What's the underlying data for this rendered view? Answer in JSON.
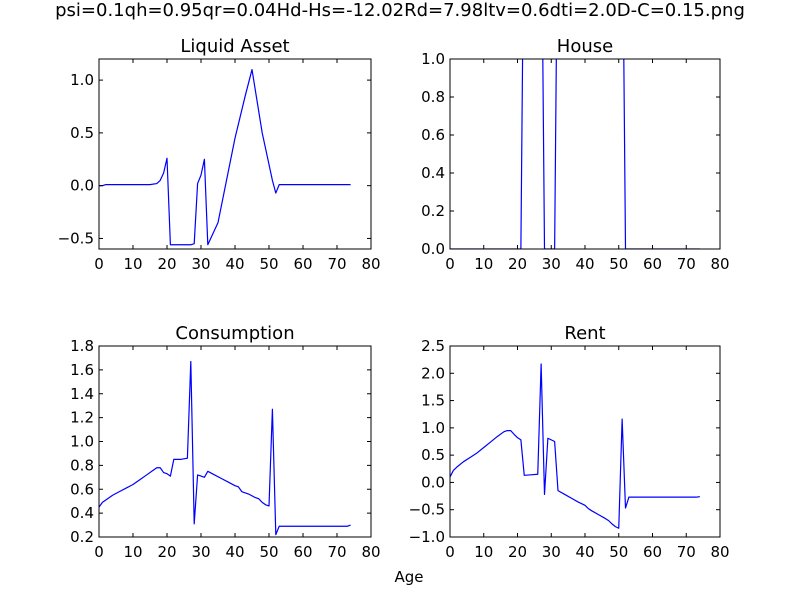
{
  "figure": {
    "suptitle": "psi=0.1qh=0.95qr=0.04Hd-Hs=-12.02Rd=7.98ltv=0.6dti=2.0D-C=0.15.png",
    "shared_xlabel": "Age",
    "line_color": "#0000ff"
  },
  "chart_data": [
    {
      "type": "line",
      "title": "Liquid Asset",
      "xlabel": "",
      "ylabel": "",
      "xlim": [
        0,
        80
      ],
      "ylim": [
        -0.6,
        1.2
      ],
      "xticks": [
        0,
        10,
        20,
        30,
        40,
        50,
        60,
        70,
        80
      ],
      "xticklabels": [
        "0",
        "10",
        "20",
        "30",
        "40",
        "50",
        "60",
        "70",
        "80"
      ],
      "yticks": [
        -0.5,
        0.0,
        0.5,
        1.0
      ],
      "yticklabels": [
        "−0.5",
        "0.0",
        "0.5",
        "1.0"
      ],
      "grid": false,
      "series": [
        {
          "x": [
            0,
            1,
            2,
            5,
            10,
            15,
            17,
            18,
            19,
            20,
            21,
            22,
            25,
            27,
            28,
            29,
            30,
            31,
            32,
            35,
            40,
            43,
            45,
            47,
            48,
            50,
            51,
            52,
            53,
            55,
            60,
            65,
            70,
            74
          ],
          "y": [
            0.0,
            0.0,
            0.01,
            0.01,
            0.01,
            0.01,
            0.02,
            0.05,
            0.12,
            0.26,
            -0.56,
            -0.56,
            -0.56,
            -0.56,
            -0.55,
            0.02,
            0.1,
            0.25,
            -0.56,
            -0.35,
            0.45,
            0.85,
            1.1,
            0.7,
            0.5,
            0.2,
            0.05,
            -0.07,
            0.01,
            0.01,
            0.01,
            0.01,
            0.01,
            0.01
          ]
        }
      ]
    },
    {
      "type": "line",
      "title": "House",
      "xlabel": "",
      "ylabel": "",
      "xlim": [
        0,
        80
      ],
      "ylim": [
        0.0,
        1.0
      ],
      "xticks": [
        0,
        10,
        20,
        30,
        40,
        50,
        60,
        70,
        80
      ],
      "xticklabels": [
        "0",
        "10",
        "20",
        "30",
        "40",
        "50",
        "60",
        "70",
        "80"
      ],
      "yticks": [
        0.0,
        0.2,
        0.4,
        0.6,
        0.8,
        1.0
      ],
      "yticklabels": [
        "0.0",
        "0.2",
        "0.4",
        "0.6",
        "0.8",
        "1.0"
      ],
      "grid": false,
      "series": [
        {
          "x": [
            0,
            10,
            21,
            22,
            27,
            28,
            31,
            32,
            51,
            52,
            60,
            70,
            74
          ],
          "y": [
            0,
            0,
            0,
            2,
            2,
            0,
            0,
            2,
            2,
            0,
            0,
            0,
            0
          ]
        }
      ]
    },
    {
      "type": "line",
      "title": "Consumption",
      "xlabel": "",
      "ylabel": "",
      "xlim": [
        0,
        80
      ],
      "ylim": [
        0.2,
        1.8
      ],
      "xticks": [
        0,
        10,
        20,
        30,
        40,
        50,
        60,
        70,
        80
      ],
      "xticklabels": [
        "0",
        "10",
        "20",
        "30",
        "40",
        "50",
        "60",
        "70",
        "80"
      ],
      "yticks": [
        0.2,
        0.4,
        0.6,
        0.8,
        1.0,
        1.2,
        1.4,
        1.6,
        1.8
      ],
      "yticklabels": [
        "0.2",
        "0.4",
        "0.6",
        "0.8",
        "1.0",
        "1.2",
        "1.4",
        "1.6",
        "1.8"
      ],
      "grid": false,
      "series": [
        {
          "x": [
            0,
            1,
            2,
            4,
            6,
            8,
            10,
            12,
            14,
            16,
            17,
            18,
            19,
            20,
            21,
            22,
            24,
            26,
            27,
            28,
            29,
            30,
            31,
            32,
            34,
            36,
            38,
            40,
            41,
            42,
            44,
            46,
            47,
            48,
            49,
            50,
            51,
            52,
            53,
            55,
            60,
            65,
            70,
            73,
            74
          ],
          "y": [
            0.45,
            0.49,
            0.51,
            0.55,
            0.58,
            0.61,
            0.64,
            0.68,
            0.72,
            0.76,
            0.78,
            0.78,
            0.74,
            0.73,
            0.71,
            0.85,
            0.85,
            0.86,
            1.67,
            0.31,
            0.72,
            0.71,
            0.7,
            0.75,
            0.72,
            0.69,
            0.66,
            0.63,
            0.62,
            0.58,
            0.56,
            0.53,
            0.52,
            0.49,
            0.47,
            0.46,
            1.27,
            0.22,
            0.29,
            0.29,
            0.29,
            0.29,
            0.29,
            0.29,
            0.3
          ]
        }
      ]
    },
    {
      "type": "line",
      "title": "Rent",
      "xlabel": "",
      "ylabel": "",
      "xlim": [
        0,
        80
      ],
      "ylim": [
        -1.0,
        2.5
      ],
      "xticks": [
        0,
        10,
        20,
        30,
        40,
        50,
        60,
        70,
        80
      ],
      "xticklabels": [
        "0",
        "10",
        "20",
        "30",
        "40",
        "50",
        "60",
        "70",
        "80"
      ],
      "yticks": [
        -1.0,
        -0.5,
        0.0,
        0.5,
        1.0,
        1.5,
        2.0,
        2.5
      ],
      "yticklabels": [
        "−1.0",
        "−0.5",
        "0.0",
        "0.5",
        "1.0",
        "1.5",
        "2.0",
        "2.5"
      ],
      "grid": false,
      "series": [
        {
          "x": [
            0,
            1,
            2,
            4,
            6,
            8,
            10,
            12,
            14,
            16,
            17,
            18,
            19,
            20,
            21,
            22,
            24,
            26,
            27,
            28,
            29,
            30,
            31,
            32,
            34,
            36,
            38,
            40,
            41,
            42,
            44,
            46,
            47,
            48,
            49,
            50,
            51,
            52,
            53,
            55,
            60,
            65,
            70,
            73,
            74
          ],
          "y": [
            0.1,
            0.22,
            0.28,
            0.38,
            0.46,
            0.54,
            0.64,
            0.74,
            0.84,
            0.93,
            0.95,
            0.95,
            0.88,
            0.82,
            0.78,
            0.13,
            0.14,
            0.15,
            2.17,
            -0.22,
            0.81,
            0.78,
            0.75,
            -0.15,
            -0.22,
            -0.29,
            -0.36,
            -0.42,
            -0.48,
            -0.52,
            -0.59,
            -0.66,
            -0.7,
            -0.76,
            -0.81,
            -0.84,
            1.16,
            -0.47,
            -0.27,
            -0.27,
            -0.27,
            -0.27,
            -0.27,
            -0.27,
            -0.26
          ]
        }
      ]
    }
  ]
}
